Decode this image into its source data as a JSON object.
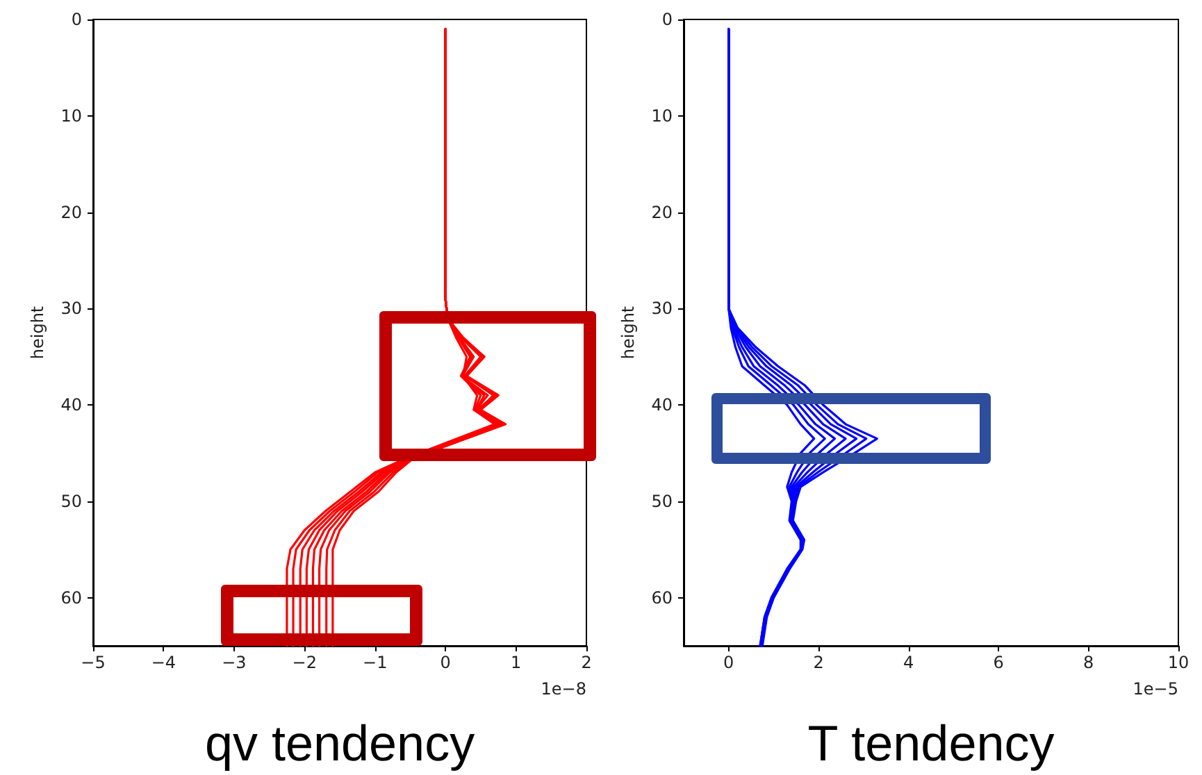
{
  "chart_data": [
    {
      "type": "line",
      "xlabel": "qv tendency",
      "ylabel": "height",
      "annotations": [
        "1e−8"
      ],
      "xlim": [
        -5,
        2
      ],
      "xticks": [
        -5,
        -4,
        -3,
        -2,
        -1,
        0,
        1,
        2
      ],
      "ylim": [
        65,
        0
      ],
      "yticks": [
        0,
        10,
        20,
        30,
        40,
        50,
        60
      ],
      "grid": false,
      "marker": "none",
      "line_style": "solid",
      "series": [
        {
          "color": "#ff0000",
          "x": [
            0,
            0,
            0.03,
            0.15,
            0.3,
            0.25,
            0.45,
            0.4,
            0.7,
            -0.55,
            -1.0,
            -1.35,
            -1.7,
            -2.0,
            -2.2,
            -2.25,
            -2.25
          ],
          "values": [
            1,
            29,
            31,
            33,
            35,
            37,
            39,
            40.5,
            42,
            45.5,
            47,
            49,
            51,
            53,
            55,
            57,
            65
          ]
        },
        {
          "color": "#ff0000",
          "x": [
            0,
            0,
            0.03,
            0.25,
            0.55,
            0.3,
            0.7,
            0.45,
            0.8,
            -0.54,
            -0.96,
            -1.29,
            -1.64,
            -1.93,
            -2.12,
            -2.16,
            -2.16
          ],
          "values": [
            1,
            29,
            31,
            33,
            35,
            37,
            39,
            40.5,
            42,
            45.5,
            47,
            49,
            51,
            53,
            55,
            57,
            65
          ]
        },
        {
          "color": "#ff0000",
          "x": [
            0,
            0,
            0.03,
            0.18,
            0.35,
            0.22,
            0.5,
            0.42,
            0.75,
            -0.53,
            -0.91,
            -1.23,
            -1.58,
            -1.86,
            -2.03,
            -2.06,
            -2.06
          ],
          "values": [
            1,
            29,
            31,
            33,
            35,
            37,
            39,
            40.5,
            42,
            45.5,
            47,
            49,
            51,
            53,
            55,
            57,
            65
          ]
        },
        {
          "color": "#ff0000",
          "x": [
            0,
            0,
            0.03,
            0.24,
            0.52,
            0.28,
            0.68,
            0.48,
            0.82,
            -0.51,
            -0.87,
            -1.18,
            -1.53,
            -1.79,
            -1.94,
            -1.97,
            -1.97
          ],
          "values": [
            1,
            29,
            31,
            33,
            35,
            37,
            39,
            40.5,
            42,
            45.5,
            47,
            49,
            51,
            53,
            55,
            57,
            65
          ]
        },
        {
          "color": "#ff0000",
          "x": [
            0,
            0,
            0.03,
            0.2,
            0.4,
            0.24,
            0.55,
            0.44,
            0.78,
            -0.5,
            -0.83,
            -1.12,
            -1.47,
            -1.72,
            -1.86,
            -1.88,
            -1.88
          ],
          "values": [
            1,
            29,
            31,
            33,
            35,
            37,
            39,
            40.5,
            42,
            45.5,
            47,
            49,
            51,
            53,
            55,
            57,
            65
          ]
        },
        {
          "color": "#ff0000",
          "x": [
            0,
            0,
            0.03,
            0.22,
            0.5,
            0.27,
            0.72,
            0.46,
            0.85,
            -0.48,
            -0.79,
            -1.07,
            -1.42,
            -1.65,
            -1.77,
            -1.79,
            -1.79
          ],
          "values": [
            1,
            29,
            31,
            33,
            35,
            37,
            39,
            40.5,
            42,
            45.5,
            47,
            49,
            51,
            53,
            55,
            57,
            65
          ]
        },
        {
          "color": "#ff0000",
          "x": [
            0,
            0,
            0.03,
            0.19,
            0.38,
            0.23,
            0.6,
            0.43,
            0.8,
            -0.47,
            -0.74,
            -1.01,
            -1.36,
            -1.57,
            -1.68,
            -1.69,
            -1.69
          ],
          "values": [
            1,
            29,
            31,
            33,
            35,
            37,
            39,
            40.5,
            42,
            45.5,
            47,
            49,
            51,
            53,
            55,
            57,
            65
          ]
        },
        {
          "color": "#ff0000",
          "x": [
            0,
            0,
            0.03,
            0.23,
            0.55,
            0.3,
            0.75,
            0.5,
            0.85,
            -0.45,
            -0.7,
            -0.95,
            -1.3,
            -1.5,
            -1.6,
            -1.6,
            -1.6
          ],
          "values": [
            1,
            29,
            31,
            33,
            35,
            37,
            39,
            40.5,
            42,
            45.5,
            47,
            49,
            51,
            53,
            55,
            57,
            65
          ]
        }
      ]
    },
    {
      "type": "line",
      "xlabel": "T tendency",
      "ylabel": "height",
      "annotations": [
        "1e−5"
      ],
      "xlim": [
        -1,
        10
      ],
      "xticks": [
        0,
        2,
        4,
        6,
        8,
        10
      ],
      "ylim": [
        65,
        0
      ],
      "yticks": [
        0,
        10,
        20,
        30,
        40,
        50,
        60
      ],
      "grid": false,
      "marker": "none",
      "line_style": "solid",
      "series": [
        {
          "color": "#0000ff",
          "x": [
            0,
            0,
            0.05,
            0.15,
            0.3,
            0.8,
            1.3,
            1.6,
            1.9,
            1.6,
            1.4,
            1.3,
            1.4,
            1.35,
            1.6,
            1.6,
            1.3,
            0.95,
            0.8,
            0.7
          ],
          "values": [
            1,
            30,
            32,
            34,
            36,
            38,
            40,
            42,
            43.5,
            45,
            47,
            48.5,
            50,
            52,
            54,
            55,
            57,
            60,
            62,
            65
          ]
        },
        {
          "color": "#0000ff",
          "x": [
            0,
            0,
            0.08,
            0.23,
            0.44,
            0.95,
            1.44,
            1.77,
            2.14,
            1.8,
            1.52,
            1.35,
            1.42,
            1.37,
            1.62,
            1.6,
            1.31,
            0.96,
            0.8,
            0.7
          ],
          "values": [
            1,
            30,
            32,
            34,
            36,
            38,
            40,
            42,
            43.5,
            45,
            47,
            48.5,
            50,
            52,
            54,
            55,
            57,
            60,
            62,
            65
          ]
        },
        {
          "color": "#0000ff",
          "x": [
            0,
            0,
            0.1,
            0.3,
            0.56,
            1.1,
            1.56,
            1.93,
            2.36,
            2.0,
            1.63,
            1.4,
            1.43,
            1.38,
            1.63,
            1.61,
            1.32,
            0.97,
            0.81,
            0.71
          ],
          "values": [
            1,
            30,
            32,
            34,
            36,
            38,
            40,
            42,
            43.5,
            45,
            47,
            48.5,
            50,
            52,
            54,
            55,
            57,
            60,
            62,
            65
          ]
        },
        {
          "color": "#0000ff",
          "x": [
            0,
            0,
            0.13,
            0.38,
            0.7,
            1.25,
            1.7,
            2.1,
            2.6,
            2.2,
            1.75,
            1.45,
            1.45,
            1.4,
            1.65,
            1.62,
            1.33,
            0.98,
            0.82,
            0.72
          ],
          "values": [
            1,
            30,
            32,
            34,
            36,
            38,
            40,
            42,
            43.5,
            45,
            47,
            48.5,
            50,
            52,
            54,
            55,
            57,
            60,
            62,
            65
          ]
        },
        {
          "color": "#0000ff",
          "x": [
            0,
            0,
            0.15,
            0.45,
            0.84,
            1.4,
            1.84,
            2.27,
            2.84,
            2.4,
            1.87,
            1.5,
            1.47,
            1.41,
            1.66,
            1.63,
            1.34,
            0.99,
            0.83,
            0.73
          ],
          "values": [
            1,
            30,
            32,
            34,
            36,
            38,
            40,
            42,
            43.5,
            45,
            47,
            48.5,
            50,
            52,
            54,
            55,
            57,
            60,
            62,
            65
          ]
        },
        {
          "color": "#0000ff",
          "x": [
            0,
            0,
            0.17,
            0.52,
            0.96,
            1.55,
            1.96,
            2.43,
            3.06,
            2.6,
            1.98,
            1.55,
            1.48,
            1.42,
            1.67,
            1.63,
            1.35,
            1.0,
            0.84,
            0.74
          ],
          "values": [
            1,
            30,
            32,
            34,
            36,
            38,
            40,
            42,
            43.5,
            45,
            47,
            48.5,
            50,
            52,
            54,
            55,
            57,
            60,
            62,
            65
          ]
        },
        {
          "color": "#0000ff",
          "x": [
            0,
            0,
            0.2,
            0.6,
            1.1,
            1.7,
            2.1,
            2.6,
            3.3,
            2.8,
            2.1,
            1.6,
            1.5,
            1.43,
            1.68,
            1.64,
            1.36,
            1.0,
            0.85,
            0.75
          ],
          "values": [
            1,
            30,
            32,
            34,
            36,
            38,
            40,
            42,
            43.5,
            45,
            47,
            48.5,
            50,
            52,
            54,
            55,
            57,
            60,
            62,
            65
          ]
        }
      ]
    }
  ]
}
